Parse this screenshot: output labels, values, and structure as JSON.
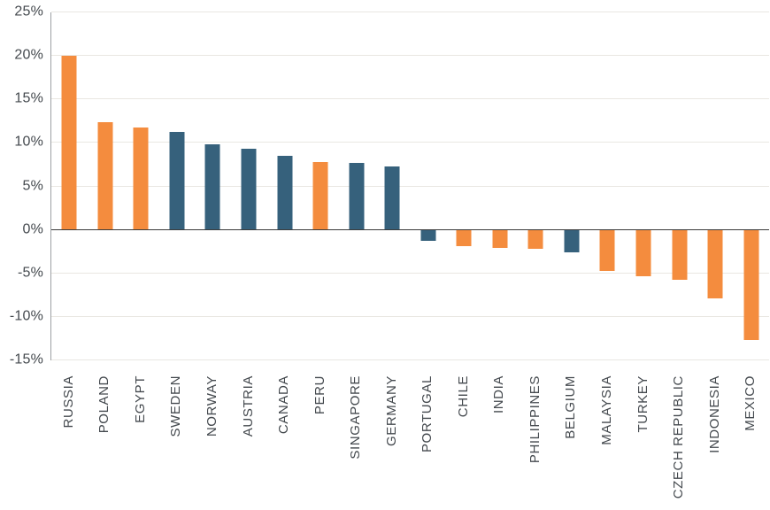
{
  "chart_data": {
    "type": "bar",
    "title": "",
    "xlabel": "",
    "ylabel": "",
    "categories": [
      "RUSSIA",
      "POLAND",
      "EGYPT",
      "SWEDEN",
      "NORWAY",
      "AUSTRIA",
      "CANADA",
      "PERU",
      "SINGAPORE",
      "GERMANY",
      "PORTUGAL",
      "CHILE",
      "INDIA",
      "PHILIPPINES",
      "BELGIUM",
      "MALAYSIA",
      "TURKEY",
      "CZECH REPUBLIC",
      "INDONESIA",
      "MEXICO"
    ],
    "values": [
      20.0,
      12.4,
      11.8,
      11.3,
      9.8,
      9.3,
      8.5,
      7.8,
      7.7,
      7.3,
      -1.3,
      -1.9,
      -2.1,
      -2.2,
      -2.6,
      -4.7,
      -5.3,
      -5.7,
      -7.9,
      -12.7
    ],
    "bar_colors": [
      "orange",
      "orange",
      "orange",
      "blue",
      "blue",
      "blue",
      "blue",
      "orange",
      "blue",
      "blue",
      "blue",
      "orange",
      "orange",
      "orange",
      "blue",
      "orange",
      "orange",
      "orange",
      "orange",
      "orange"
    ],
    "palette": {
      "orange": "#f48c3e",
      "blue": "#36617c"
    },
    "yticks": [
      25,
      20,
      15,
      10,
      5,
      0,
      -5,
      -10,
      -15
    ],
    "ytick_labels": [
      "25%",
      "20%",
      "15%",
      "10%",
      "5%",
      "0%",
      "-5%",
      "-10%",
      "-15%"
    ],
    "ylim": [
      -15,
      25
    ],
    "grid": true,
    "legend": "none",
    "colors": {
      "axis_label": "#44494e",
      "gridline": "#e9e7e2",
      "zero_line": "#3a3a3a",
      "axis_line": "#9da0a3",
      "background": "#ffffff"
    }
  }
}
